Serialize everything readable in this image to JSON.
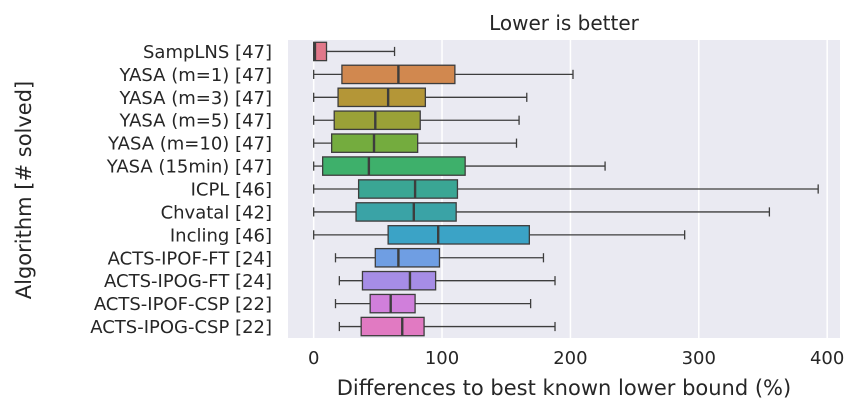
{
  "chart_data": {
    "type": "boxplot",
    "title": "Lower is better",
    "xlabel": "Differences to best known lower bound (%)",
    "ylabel": "Algorithm [# solved]",
    "xlim": [
      -20,
      410
    ],
    "xticks": [
      0,
      100,
      200,
      300,
      400
    ],
    "grid": true,
    "background": "#eaeaf2",
    "grid_color": "#ffffff",
    "categories": [
      "SampLNS [47]",
      "YASA (m=1) [47]",
      "YASA (m=3) [47]",
      "YASA (m=5) [47]",
      "YASA (m=10) [47]",
      "YASA (15min) [47]",
      "ICPL [46]",
      "Chvatal [42]",
      "Incling [46]",
      "ACTS-IPOF-FT [24]",
      "ACTS-IPOG-FT [24]",
      "ACTS-IPOF-CSP [22]",
      "ACTS-IPOG-CSP [22]"
    ],
    "boxes": [
      {
        "min": 0,
        "q1": 0,
        "median": 1,
        "q3": 10,
        "max": 63,
        "color": "#e1788a"
      },
      {
        "min": 0,
        "q1": 22,
        "median": 66,
        "q3": 110,
        "max": 202,
        "color": "#d1884f"
      },
      {
        "min": 0,
        "q1": 19,
        "median": 58,
        "q3": 87,
        "max": 166,
        "color": "#b49637"
      },
      {
        "min": 0,
        "q1": 16,
        "median": 48,
        "q3": 83,
        "max": 160,
        "color": "#9aa137"
      },
      {
        "min": 0,
        "q1": 14,
        "median": 47,
        "q3": 81,
        "max": 158,
        "color": "#74ac3e"
      },
      {
        "min": 0,
        "q1": 7,
        "median": 43,
        "q3": 118,
        "max": 227,
        "color": "#3eb06b"
      },
      {
        "min": 0,
        "q1": 35,
        "median": 79,
        "q3": 112,
        "max": 393,
        "color": "#3aa694"
      },
      {
        "min": 0,
        "q1": 33,
        "median": 78,
        "q3": 111,
        "max": 355,
        "color": "#3aa3a6"
      },
      {
        "min": 0,
        "q1": 58,
        "median": 97,
        "q3": 168,
        "max": 289,
        "color": "#3ba3c6"
      },
      {
        "min": 17,
        "q1": 48,
        "median": 66,
        "q3": 98,
        "max": 179,
        "color": "#6f9ee3"
      },
      {
        "min": 20,
        "q1": 38,
        "median": 75,
        "q3": 95,
        "max": 188,
        "color": "#a68de6"
      },
      {
        "min": 17,
        "q1": 44,
        "median": 60,
        "q3": 79,
        "max": 169,
        "color": "#d07fdb"
      },
      {
        "min": 20,
        "q1": 37,
        "median": 69,
        "q3": 86,
        "max": 188,
        "color": "#e17ac2"
      }
    ]
  }
}
